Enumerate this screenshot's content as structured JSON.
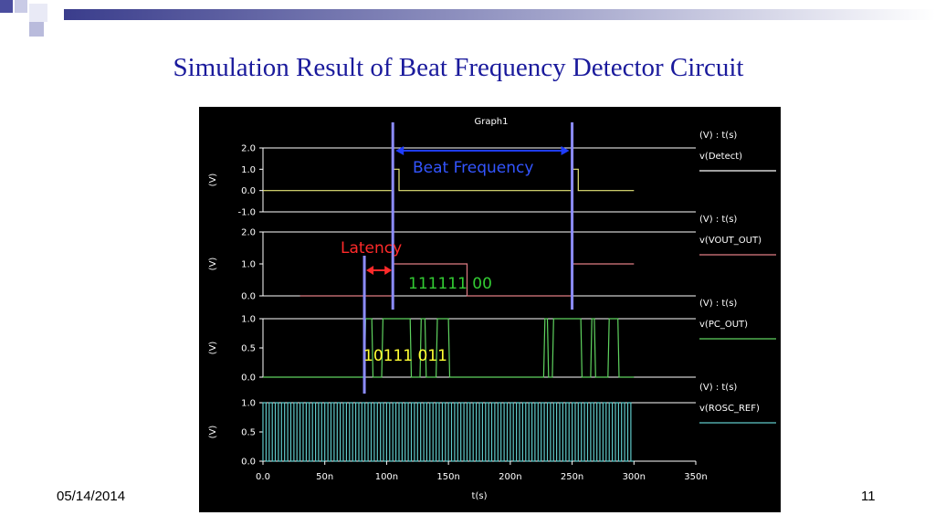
{
  "slide": {
    "title": "Simulation Result of Beat Frequency Detector Circuit",
    "date": "05/14/2014",
    "page_number": "11"
  },
  "chart_data": {
    "type": "line",
    "title": "Graph1",
    "xlabel": "t(s)",
    "xlim": [
      0,
      350
    ],
    "x_ticks": [
      "0.0",
      "50n",
      "100n",
      "150n",
      "200n",
      "250n",
      "300n",
      "350n"
    ],
    "x_tick_values": [
      0,
      50,
      100,
      150,
      200,
      250,
      300,
      350
    ],
    "grid": false,
    "panels": [
      {
        "legend_header": "(V) : t(s)",
        "series_name": "v(Detect)",
        "ylabel": "(V)",
        "ylim": [
          -1,
          2
        ],
        "y_ticks": [
          "2.0",
          "1.0",
          "0.0",
          "-1.0"
        ],
        "y_tick_values": [
          2,
          1,
          0,
          -1
        ],
        "color": "#e8e87a",
        "legend_color": "#ffffff",
        "points": [
          [
            0,
            0
          ],
          [
            105,
            0
          ],
          [
            105,
            1
          ],
          [
            110,
            1
          ],
          [
            110,
            0
          ],
          [
            250,
            0
          ],
          [
            250,
            1
          ],
          [
            255,
            1
          ],
          [
            255,
            0
          ],
          [
            300,
            0
          ]
        ]
      },
      {
        "legend_header": "(V) : t(s)",
        "series_name": "v(VOUT_OUT)",
        "ylabel": "(V)",
        "ylim": [
          0,
          2
        ],
        "y_ticks": [
          "2.0",
          "1.0",
          "0.0"
        ],
        "y_tick_values": [
          2,
          1,
          0
        ],
        "color": "#e07c84",
        "legend_color": "#e07c84",
        "points": [
          [
            30,
            0
          ],
          [
            105,
            0
          ],
          [
            105,
            1
          ],
          [
            165,
            1
          ],
          [
            165,
            0
          ],
          [
            250,
            0
          ],
          [
            250,
            1
          ],
          [
            300,
            1
          ]
        ]
      },
      {
        "legend_header": "(V) : t(s)",
        "series_name": "v(PC_OUT)",
        "ylabel": "(V)",
        "ylim": [
          0,
          1
        ],
        "y_ticks": [
          "1.0",
          "0.5",
          "0.0"
        ],
        "y_tick_values": [
          1,
          0.5,
          0
        ],
        "color": "#5fd35f",
        "legend_color": "#5fd35f",
        "points": [
          [
            0,
            0
          ],
          [
            82,
            0
          ],
          [
            83,
            1
          ],
          [
            88,
            1
          ],
          [
            89,
            0
          ],
          [
            96,
            0
          ],
          [
            97,
            1
          ],
          [
            119,
            1
          ],
          [
            120,
            0
          ],
          [
            127,
            0
          ],
          [
            128,
            1
          ],
          [
            131,
            1
          ],
          [
            132,
            0
          ],
          [
            140,
            0
          ],
          [
            141,
            1
          ],
          [
            150,
            1
          ],
          [
            151,
            0
          ],
          [
            227,
            0
          ],
          [
            228,
            1
          ],
          [
            230,
            1
          ],
          [
            231,
            0
          ],
          [
            234,
            0
          ],
          [
            235,
            1
          ],
          [
            257,
            1
          ],
          [
            258,
            0
          ],
          [
            265,
            0
          ],
          [
            266,
            1
          ],
          [
            268,
            1
          ],
          [
            269,
            0
          ],
          [
            279,
            0
          ],
          [
            280,
            1
          ],
          [
            287,
            1
          ],
          [
            288,
            0
          ],
          [
            300,
            0
          ]
        ]
      },
      {
        "legend_header": "(V) : t(s)",
        "series_name": "v(ROSC_REF)",
        "ylabel": "(V)",
        "ylim": [
          0,
          1
        ],
        "y_ticks": [
          "1.0",
          "0.5",
          "0.0"
        ],
        "y_tick_values": [
          1,
          0.5,
          0
        ],
        "color": "#5fc9c9",
        "legend_color": "#5fc9c9",
        "clock": {
          "start": 0,
          "end": 300,
          "period": 5,
          "high": 1,
          "low": 0
        }
      }
    ],
    "annotations": [
      {
        "text": "Beat Frequency",
        "color": "#3355ff"
      },
      {
        "text": "Latency",
        "color": "#ff2a2a"
      },
      {
        "text": "111111 00",
        "color": "#33cc33"
      },
      {
        "text": "10111 011",
        "color": "#ffff33"
      }
    ],
    "markers": {
      "beat_start": 105,
      "beat_end": 250,
      "latency_start": 82,
      "latency_end": 105
    }
  }
}
